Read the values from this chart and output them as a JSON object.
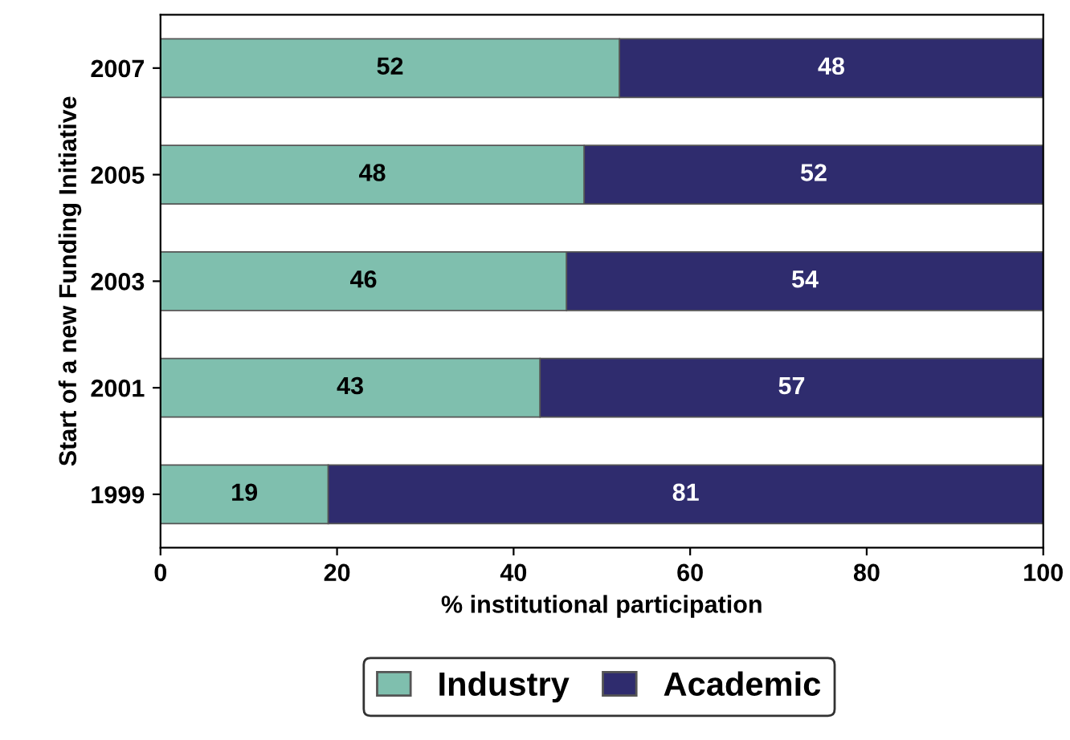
{
  "chart_data": {
    "type": "bar",
    "orientation": "horizontal",
    "stacked": true,
    "categories": [
      "2007",
      "2005",
      "2003",
      "2001",
      "1999"
    ],
    "series": [
      {
        "name": "Industry",
        "color": "#7fbfae",
        "values": [
          52,
          48,
          46,
          43,
          19
        ]
      },
      {
        "name": "Academic",
        "color": "#2f2c6e",
        "values": [
          48,
          52,
          54,
          57,
          81
        ]
      }
    ],
    "xlim": [
      0,
      100
    ],
    "xticks": [
      0,
      20,
      40,
      60,
      80,
      100
    ],
    "xlabel": "% institutional participation",
    "ylabel": "Start of a new Funding Initiative",
    "data_labels": true,
    "legend": "bottom",
    "grid": false
  }
}
